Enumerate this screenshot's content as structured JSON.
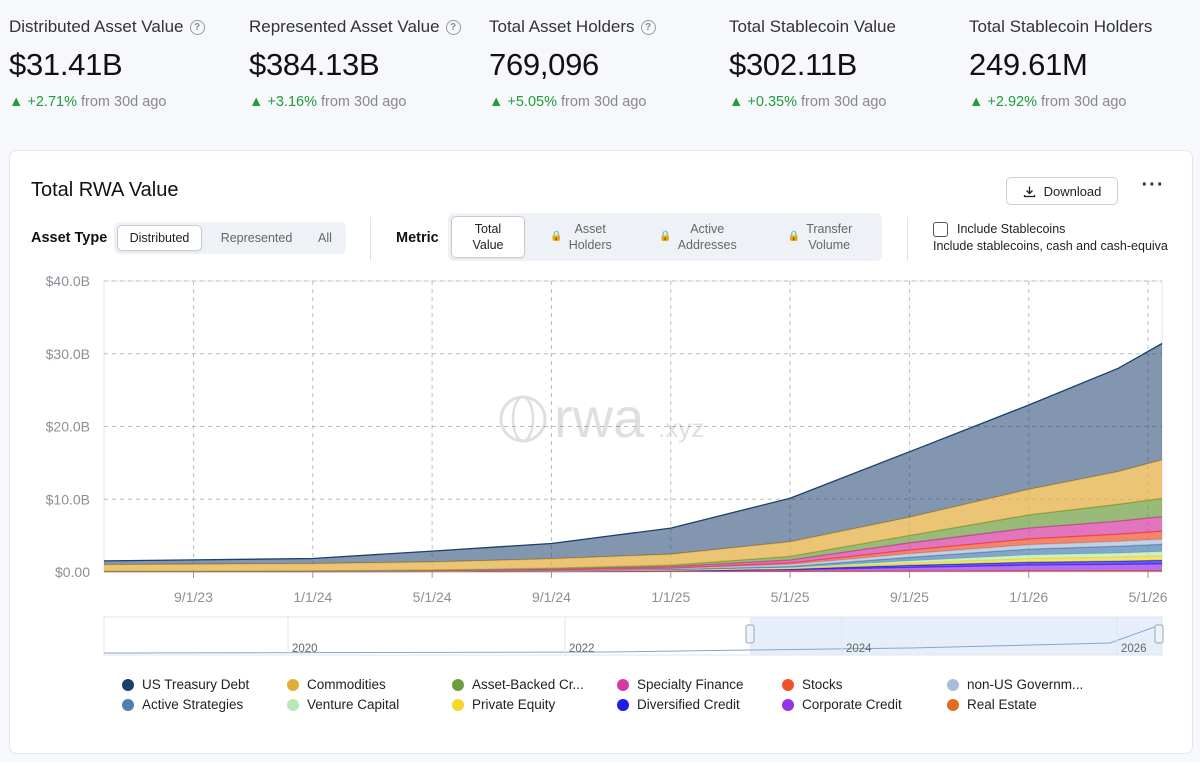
{
  "stats": [
    {
      "label": "Distributed Asset Value",
      "has_help": true,
      "value": "$31.41B",
      "change": "+2.71%",
      "period": "from 30d ago"
    },
    {
      "label": "Represented Asset Value",
      "has_help": true,
      "value": "$384.13B",
      "change": "+3.16%",
      "period": "from 30d ago"
    },
    {
      "label": "Total Asset Holders",
      "has_help": true,
      "value": "769,096",
      "change": "+5.05%",
      "period": "from 30d ago"
    },
    {
      "label": "Total Stablecoin Value",
      "has_help": false,
      "value": "$302.11B",
      "change": "+0.35%",
      "period": "from 30d ago"
    },
    {
      "label": "Total Stablecoin Holders",
      "has_help": false,
      "value": "249.61M",
      "change": "+2.92%",
      "period": "from 30d ago"
    }
  ],
  "card": {
    "title": "Total RWA Value",
    "download_label": "Download",
    "more_icon": "more-horizontal-icon"
  },
  "controls": {
    "asset_type_label": "Asset Type",
    "asset_type_options": [
      "Distributed",
      "Represented",
      "All"
    ],
    "asset_type_selected": "Distributed",
    "metric_label": "Metric",
    "metric_options": [
      {
        "label": "Total\nValue",
        "locked": false
      },
      {
        "label": "Asset\nHolders",
        "locked": true
      },
      {
        "label": "Active\nAddresses",
        "locked": true
      },
      {
        "label": "Transfer\nVolume",
        "locked": true
      }
    ],
    "metric_selected": "Total Value",
    "include_stablecoins_label": "Include Stablecoins",
    "include_stablecoins_sub": "Include stablecoins, cash and cash-equiva",
    "include_stablecoins_checked": false
  },
  "watermark": {
    "text_main": "rwa",
    "text_suffix": ".xyz"
  },
  "chart_data": {
    "type": "area",
    "stacked": true,
    "y_unit": "USD billions",
    "ylim": [
      0,
      40
    ],
    "yticks": [
      "$0.00",
      "$10.0B",
      "$20.0B",
      "$30.0B",
      "$40.0B"
    ],
    "xticks": [
      "9/1/23",
      "1/1/24",
      "5/1/24",
      "9/1/24",
      "1/1/25",
      "5/1/25",
      "9/1/25",
      "1/1/26",
      "5/1/26"
    ],
    "grid": true,
    "x": [
      "6/1/23",
      "9/1/23",
      "1/1/24",
      "5/1/24",
      "9/1/24",
      "1/1/25",
      "5/1/25",
      "9/1/25",
      "1/1/26",
      "4/1/26",
      "5/15/26"
    ],
    "series": [
      {
        "name": "Real Estate",
        "color": "#e06c1f",
        "values": [
          0.05,
          0.05,
          0.05,
          0.05,
          0.06,
          0.08,
          0.1,
          0.12,
          0.15,
          0.15,
          0.16
        ]
      },
      {
        "name": "Corporate Credit",
        "color": "#9333ea",
        "values": [
          0.02,
          0.02,
          0.02,
          0.03,
          0.05,
          0.1,
          0.2,
          0.5,
          0.8,
          0.9,
          0.95
        ]
      },
      {
        "name": "Diversified Credit",
        "color": "#1d1ee8",
        "values": [
          0.01,
          0.01,
          0.01,
          0.02,
          0.04,
          0.05,
          0.1,
          0.3,
          0.4,
          0.45,
          0.5
        ]
      },
      {
        "name": "Private Equity",
        "color": "#f2d829",
        "values": [
          0.0,
          0.0,
          0.0,
          0.01,
          0.02,
          0.03,
          0.1,
          0.3,
          0.5,
          0.55,
          0.6
        ]
      },
      {
        "name": "Venture Capital",
        "color": "#b9e8b4",
        "values": [
          0.0,
          0.0,
          0.0,
          0.01,
          0.02,
          0.03,
          0.1,
          0.3,
          0.5,
          0.55,
          0.6
        ]
      },
      {
        "name": "Active Strategies",
        "color": "#4f7fb0",
        "values": [
          0.0,
          0.0,
          0.0,
          0.0,
          0.02,
          0.05,
          0.15,
          0.5,
          0.8,
          0.95,
          1.0
        ]
      },
      {
        "name": "non-US Government Debt",
        "color": "#a9bdd8",
        "values": [
          0.02,
          0.02,
          0.03,
          0.05,
          0.1,
          0.15,
          0.3,
          0.5,
          0.6,
          0.65,
          0.7
        ]
      },
      {
        "name": "Stocks",
        "color": "#f0512b",
        "values": [
          0.0,
          0.0,
          0.0,
          0.0,
          0.01,
          0.05,
          0.2,
          0.5,
          0.8,
          1.0,
          1.1
        ]
      },
      {
        "name": "Specialty Finance",
        "color": "#d63aa3",
        "values": [
          0.01,
          0.01,
          0.02,
          0.05,
          0.1,
          0.2,
          0.4,
          1.0,
          1.5,
          1.8,
          2.0
        ]
      },
      {
        "name": "Asset-Backed Credit",
        "color": "#6e9d3e",
        "values": [
          0.01,
          0.01,
          0.02,
          0.05,
          0.1,
          0.2,
          0.5,
          1.0,
          1.8,
          2.3,
          2.5
        ]
      },
      {
        "name": "Commodities",
        "color": "#e3ad3a",
        "values": [
          0.9,
          0.95,
          1.0,
          1.1,
          1.3,
          1.5,
          2.0,
          2.5,
          3.5,
          4.5,
          5.3
        ]
      },
      {
        "name": "US Treasury Debt",
        "color": "#1b3f6e",
        "values": [
          0.5,
          0.6,
          0.7,
          1.5,
          2.1,
          3.6,
          6.0,
          9.0,
          11.6,
          14.2,
          16.0
        ]
      }
    ]
  },
  "range_slider": {
    "year_labels": [
      "2020",
      "2022",
      "2024",
      "2026"
    ]
  },
  "legend": {
    "items": [
      {
        "label": "US Treasury Debt",
        "color": "#1b3f6e"
      },
      {
        "label": "Commodities",
        "color": "#e3ad3a"
      },
      {
        "label": "Asset-Backed Cr...",
        "color": "#6e9d3e"
      },
      {
        "label": "Specialty Finance",
        "color": "#d63aa3"
      },
      {
        "label": "Stocks",
        "color": "#f0512b"
      },
      {
        "label": "non-US Governm...",
        "color": "#a9bdd8"
      },
      {
        "label": "Active Strategies",
        "color": "#4f7fb0"
      },
      {
        "label": "Venture Capital",
        "color": "#b9e8b4"
      },
      {
        "label": "Private Equity",
        "color": "#f2d829"
      },
      {
        "label": "Diversified Credit",
        "color": "#1d1ee8"
      },
      {
        "label": "Corporate Credit",
        "color": "#9333ea"
      },
      {
        "label": "Real Estate",
        "color": "#e06c1f"
      }
    ]
  }
}
